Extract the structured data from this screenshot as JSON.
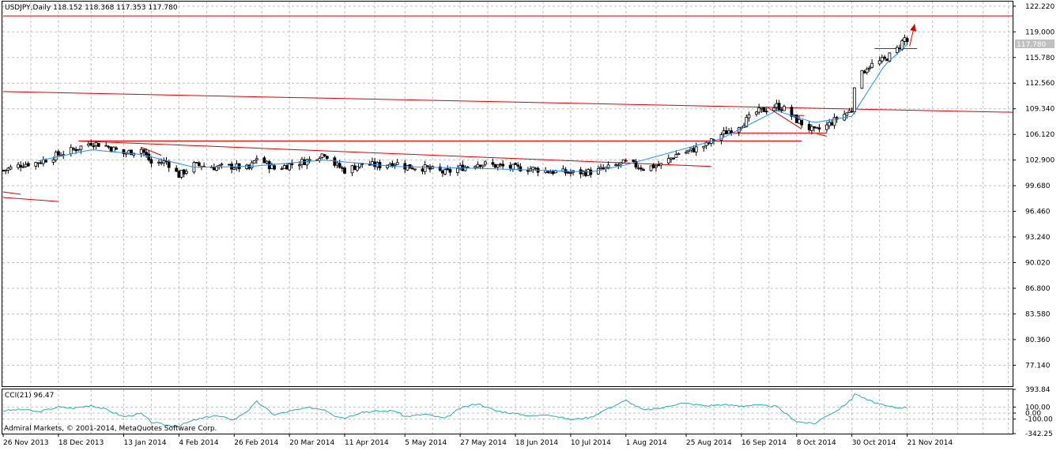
{
  "header": {
    "symbol_info": "USDJPY,Daily  118.152 118.368 117.353 117.780",
    "current_price_tag": "117.780"
  },
  "indicator": {
    "label": "CCI(21) 96.47",
    "axis_labels": [
      "393.84",
      "100.00",
      "0.00",
      "-100.00",
      "-342.25"
    ],
    "range": [
      -342.25,
      393.84
    ],
    "levels": [
      100,
      0,
      -100
    ],
    "copyright": "Admiral Markets, © 2001-2014, MetaQuotes Software Corp."
  },
  "colors": {
    "background": "#ffffff",
    "grid": "#c0c0c0",
    "trendline": "#e00000",
    "candle": "#000000",
    "ma_line": "#1e90ff",
    "cci_line": "#20b2aa",
    "price_tag_bg": "#c0c0c0"
  },
  "chart_data": [
    {
      "type": "candlestick",
      "title": "USDJPY,Daily",
      "ylim": [
        74.5,
        122.8
      ],
      "yticks": [
        "122.220",
        "119.000",
        "115.780",
        "112.560",
        "109.340",
        "106.120",
        "102.900",
        "99.680",
        "96.460",
        "93.240",
        "90.020",
        "86.800",
        "83.580",
        "80.360",
        "77.140"
      ],
      "xticks": [
        "26 Nov 2013",
        "18 Dec 2013",
        "13 Jan 2014",
        "4 Feb 2014",
        "26 Feb 2014",
        "20 Mar 2014",
        "11 Apr 2014",
        "5 May 2014",
        "27 May 2014",
        "18 Jun 2014",
        "10 Jul 2014",
        "1 Aug 2014",
        "25 Aug 2014",
        "16 Sep 2014",
        "8 Oct 2014",
        "30 Oct 2014",
        "21 Nov 2014"
      ],
      "close_anchors": [
        [
          "26 Nov 2013",
          101.6
        ],
        [
          "4 Dec 2013",
          102.4
        ],
        [
          "10 Dec 2013",
          102.6
        ],
        [
          "18 Dec 2013",
          103.6
        ],
        [
          "24 Dec 2013",
          104.2
        ],
        [
          "31 Dec 2013",
          105.1
        ],
        [
          "6 Jan 2014",
          104.7
        ],
        [
          "13 Jan 2014",
          103.7
        ],
        [
          "20 Jan 2014",
          104.3
        ],
        [
          "24 Jan 2014",
          102.5
        ],
        [
          "30 Jan 2014",
          102.7
        ],
        [
          "4 Feb 2014",
          101.0
        ],
        [
          "10 Feb 2014",
          102.3
        ],
        [
          "18 Feb 2014",
          102.0
        ],
        [
          "26 Feb 2014",
          102.1
        ],
        [
          "4 Mar 2014",
          101.8
        ],
        [
          "7 Mar 2014",
          103.2
        ],
        [
          "14 Mar 2014",
          101.8
        ],
        [
          "20 Mar 2014",
          102.3
        ],
        [
          "28 Mar 2014",
          102.9
        ],
        [
          "3 Apr 2014",
          103.8
        ],
        [
          "7 Apr 2014",
          102.4
        ],
        [
          "11 Apr 2014",
          101.6
        ],
        [
          "18 Apr 2014",
          102.4
        ],
        [
          "25 Apr 2014",
          102.2
        ],
        [
          "1 May 2014",
          102.6
        ],
        [
          "5 May 2014",
          102.1
        ],
        [
          "13 May 2014",
          101.9
        ],
        [
          "21 May 2014",
          101.3
        ],
        [
          "27 May 2014",
          101.9
        ],
        [
          "3 Jun 2014",
          102.5
        ],
        [
          "10 Jun 2014",
          102.2
        ],
        [
          "18 Jun 2014",
          101.9
        ],
        [
          "25 Jun 2014",
          101.8
        ],
        [
          "1 Jul 2014",
          101.5
        ],
        [
          "10 Jul 2014",
          101.3
        ],
        [
          "18 Jul 2014",
          101.4
        ],
        [
          "24 Jul 2014",
          101.8
        ],
        [
          "1 Aug 2014",
          102.6
        ],
        [
          "8 Aug 2014",
          101.9
        ],
        [
          "15 Aug 2014",
          102.3
        ],
        [
          "22 Aug 2014",
          103.8
        ],
        [
          "25 Aug 2014",
          103.9
        ],
        [
          "2 Sep 2014",
          104.8
        ],
        [
          "8 Sep 2014",
          106.1
        ],
        [
          "16 Sep 2014",
          107.4
        ],
        [
          "22 Sep 2014",
          108.9
        ],
        [
          "30 Sep 2014",
          109.7
        ],
        [
          "3 Oct 2014",
          109.3
        ],
        [
          "8 Oct 2014",
          107.9
        ],
        [
          "15 Oct 2014",
          106.5
        ],
        [
          "20 Oct 2014",
          107.2
        ],
        [
          "24 Oct 2014",
          108.1
        ],
        [
          "30 Oct 2014",
          109.2
        ],
        [
          "31 Oct 2014",
          112.4
        ],
        [
          "5 Nov 2014",
          114.6
        ],
        [
          "12 Nov 2014",
          115.5
        ],
        [
          "17 Nov 2014",
          116.8
        ],
        [
          "20 Nov 2014",
          118.2
        ],
        [
          "21 Nov 2014",
          117.78
        ]
      ],
      "ma_anchors": [
        [
          "10 Dec 2013",
          102.8
        ],
        [
          "31 Dec 2013",
          104.2
        ],
        [
          "20 Jan 2014",
          103.6
        ],
        [
          "10 Feb 2014",
          102.0
        ],
        [
          "4 Mar 2014",
          102.1
        ],
        [
          "3 Apr 2014",
          102.9
        ],
        [
          "1 May 2014",
          102.1
        ],
        [
          "10 Jun 2014",
          101.8
        ],
        [
          "18 Jul 2014",
          101.4
        ],
        [
          "1 Aug 2014",
          102.3
        ],
        [
          "8 Sep 2014",
          105.6
        ],
        [
          "30 Sep 2014",
          109.1
        ],
        [
          "15 Oct 2014",
          107.6
        ],
        [
          "30 Oct 2014",
          108.4
        ],
        [
          "12 Nov 2014",
          114.8
        ],
        [
          "21 Nov 2014",
          117.4
        ]
      ],
      "trendlines": [
        {
          "from": [
            "26 Nov 2013",
            121.0
          ],
          "to": [
            "2 Jan 2015",
            121.0
          ]
        },
        {
          "from": [
            "26 Nov 2013",
            111.5
          ],
          "to": [
            "2 Jan 2015",
            108.9
          ]
        },
        {
          "from": [
            "9 Oct 2014",
            108.5
          ],
          "to": [
            "11 Oct 2014",
            108.5
          ]
        },
        {
          "from": [
            "26 Nov 2013",
            98.2
          ],
          "to": [
            "18 Dec 2013",
            97.7
          ]
        },
        {
          "from": [
            "26 Nov 2013",
            98.9
          ],
          "to": [
            "3 Dec 2013",
            98.6
          ]
        },
        {
          "from": [
            "26 Dec 2013",
            105.3
          ],
          "to": [
            "10 Oct 2014",
            105.3
          ]
        },
        {
          "from": [
            "26 Dec 2013",
            105.3
          ],
          "to": [
            "4 Sep 2014",
            102.1
          ]
        },
        {
          "from": [
            "20 Jan 2014",
            104.5
          ],
          "to": [
            "28 Jan 2014",
            103.5
          ]
        },
        {
          "from": [
            "10 Sep 2014",
            106.3
          ],
          "to": [
            "20 Oct 2014",
            106.3
          ]
        },
        {
          "from": [
            "8 Nov 2014",
            116.9
          ],
          "to": [
            "25 Nov 2014",
            116.9
          ]
        },
        {
          "from": [
            "26 Sep 2014",
            109.6
          ],
          "to": [
            "10 Oct 2014",
            106.8
          ]
        },
        {
          "from": [
            "16 Oct 2014",
            106.2
          ],
          "to": [
            "20 Oct 2014",
            105.9
          ]
        }
      ],
      "arrow": {
        "from": [
          "22 Nov 2014",
          117.2
        ],
        "to": [
          "24 Nov 2014",
          120.0
        ]
      }
    },
    {
      "type": "line",
      "title": "CCI(21) 96.47",
      "ylim": [
        -342.25,
        393.84
      ],
      "anchors": [
        [
          "26 Nov 2013",
          40
        ],
        [
          "4 Dec 2013",
          60
        ],
        [
          "10 Dec 2013",
          20
        ],
        [
          "18 Dec 2013",
          100
        ],
        [
          "24 Dec 2013",
          80
        ],
        [
          "31 Dec 2013",
          130
        ],
        [
          "6 Jan 2014",
          60
        ],
        [
          "13 Jan 2014",
          -60
        ],
        [
          "20 Jan 2014",
          -10
        ],
        [
          "24 Jan 2014",
          -150
        ],
        [
          "30 Jan 2014",
          -200
        ],
        [
          "4 Feb 2014",
          -210
        ],
        [
          "10 Feb 2014",
          -120
        ],
        [
          "18 Feb 2014",
          -40
        ],
        [
          "26 Feb 2014",
          -110
        ],
        [
          "4 Mar 2014",
          60
        ],
        [
          "7 Mar 2014",
          190
        ],
        [
          "14 Mar 2014",
          -30
        ],
        [
          "20 Mar 2014",
          30
        ],
        [
          "28 Mar 2014",
          90
        ],
        [
          "3 Apr 2014",
          60
        ],
        [
          "7 Apr 2014",
          -40
        ],
        [
          "11 Apr 2014",
          -80
        ],
        [
          "18 Apr 2014",
          20
        ],
        [
          "25 Apr 2014",
          30
        ],
        [
          "1 May 2014",
          40
        ],
        [
          "5 May 2014",
          -60
        ],
        [
          "13 May 2014",
          -20
        ],
        [
          "21 May 2014",
          -90
        ],
        [
          "27 May 2014",
          80
        ],
        [
          "3 Jun 2014",
          160
        ],
        [
          "10 Jun 2014",
          40
        ],
        [
          "18 Jun 2014",
          -10
        ],
        [
          "25 Jun 2014",
          -50
        ],
        [
          "1 Jul 2014",
          -20
        ],
        [
          "10 Jul 2014",
          -110
        ],
        [
          "18 Jul 2014",
          -70
        ],
        [
          "24 Jul 2014",
          60
        ],
        [
          "1 Aug 2014",
          210
        ],
        [
          "8 Aug 2014",
          50
        ],
        [
          "15 Aug 2014",
          80
        ],
        [
          "22 Aug 2014",
          160
        ],
        [
          "25 Aug 2014",
          160
        ],
        [
          "2 Sep 2014",
          120
        ],
        [
          "8 Sep 2014",
          140
        ],
        [
          "16 Sep 2014",
          120
        ],
        [
          "22 Sep 2014",
          130
        ],
        [
          "30 Sep 2014",
          110
        ],
        [
          "3 Oct 2014",
          10
        ],
        [
          "8 Oct 2014",
          -140
        ],
        [
          "15 Oct 2014",
          -180
        ],
        [
          "20 Oct 2014",
          -40
        ],
        [
          "24 Oct 2014",
          40
        ],
        [
          "30 Oct 2014",
          230
        ],
        [
          "31 Oct 2014",
          330
        ],
        [
          "5 Nov 2014",
          220
        ],
        [
          "12 Nov 2014",
          120
        ],
        [
          "17 Nov 2014",
          90
        ],
        [
          "20 Nov 2014",
          95
        ],
        [
          "21 Nov 2014",
          96.47
        ]
      ]
    }
  ]
}
